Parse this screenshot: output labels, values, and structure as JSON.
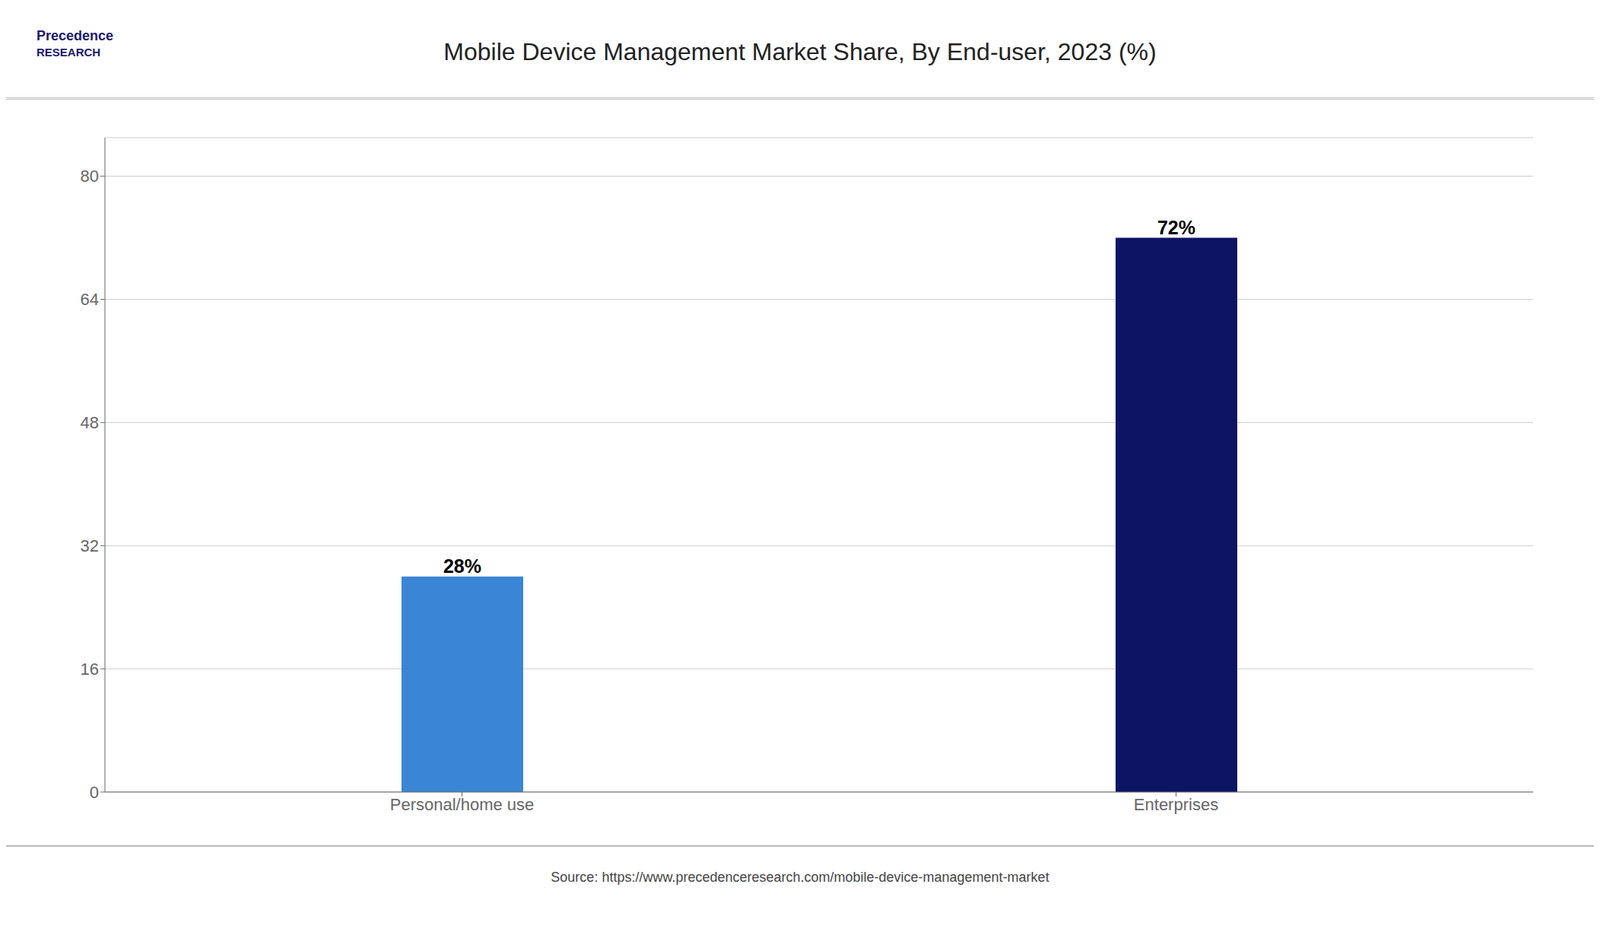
{
  "chart_data": {
    "type": "bar",
    "title": "Mobile Device Management Market Share, By End-user, 2023 (%)",
    "categories": [
      "Personal/home use",
      "Enterprises"
    ],
    "values": [
      28,
      72
    ],
    "value_labels": [
      "28%",
      "72%"
    ],
    "data_labels": true,
    "colors": [
      "#3a86d4",
      "#0d1464"
    ],
    "ylim": [
      0,
      85
    ],
    "yticks": [
      0,
      16,
      32,
      48,
      64,
      80
    ],
    "grid": true,
    "annotations": [
      "Precedence",
      "RESEARCH",
      "Source: https://www.precedenceresearch.com/mobile-device-management-market"
    ]
  }
}
